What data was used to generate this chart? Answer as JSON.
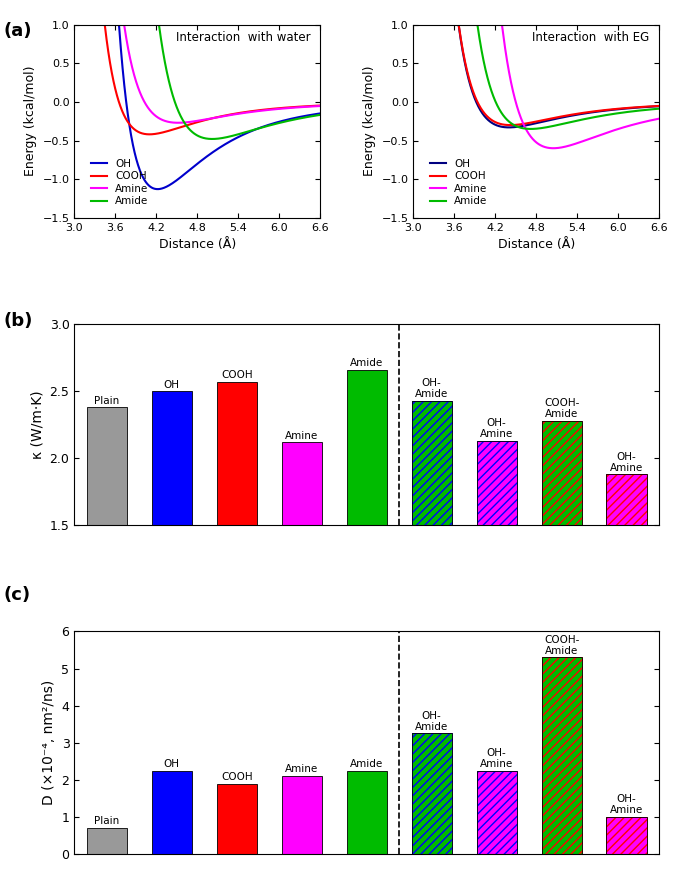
{
  "water_curves": {
    "OH": {
      "color": "#0000CC",
      "r0": 4.22,
      "eps": 1.13
    },
    "COOH": {
      "color": "#FF0000",
      "r0": 4.1,
      "eps": 0.42
    },
    "Amine": {
      "color": "#FF00FF",
      "r0": 4.52,
      "eps": 0.27
    },
    "Amide": {
      "color": "#00BB00",
      "r0": 5.02,
      "eps": 0.48
    }
  },
  "eg_curves": {
    "OH": {
      "color": "#000080",
      "r0": 4.4,
      "eps": 0.33
    },
    "COOH": {
      "color": "#FF0000",
      "r0": 4.42,
      "eps": 0.3
    },
    "Amine": {
      "color": "#FF00FF",
      "r0": 5.05,
      "eps": 0.6
    },
    "Amide": {
      "color": "#00BB00",
      "r0": 4.72,
      "eps": 0.35
    }
  },
  "panel_b_values": [
    2.38,
    2.5,
    2.57,
    2.12,
    2.66,
    2.43,
    2.13,
    2.28,
    1.88
  ],
  "panel_b_colors": [
    "#999999",
    "#0000FF",
    "#FF0000",
    "#FF00FF",
    "#00BB00",
    "#00BB00",
    "#FF00FF",
    "#00BB00",
    "#FF00FF"
  ],
  "panel_b_hatches": [
    null,
    null,
    null,
    null,
    null,
    "////",
    "////",
    "////",
    "////"
  ],
  "panel_b_hatch_ec": [
    "#999999",
    "#0000FF",
    "#FF0000",
    "#FF00FF",
    "#00BB00",
    "#0000FF",
    "#0000FF",
    "#FF0000",
    "#FF0000"
  ],
  "panel_b_labels": [
    "Plain",
    "OH",
    "COOH",
    "Amine",
    "Amide",
    "OH-\nAmide",
    "OH-\nAmine",
    "COOH-\nAmide",
    "OH-\nAmine"
  ],
  "panel_b_ylabel": "κ (W/m·K)",
  "panel_b_ylim": [
    1.5,
    3.0
  ],
  "panel_b_yticks": [
    1.5,
    2.0,
    2.5,
    3.0
  ],
  "panel_c_values": [
    0.7,
    2.25,
    1.9,
    2.1,
    2.25,
    3.25,
    2.25,
    5.3,
    1.0
  ],
  "panel_c_colors": [
    "#999999",
    "#0000FF",
    "#FF0000",
    "#FF00FF",
    "#00BB00",
    "#00BB00",
    "#FF00FF",
    "#00BB00",
    "#FF00FF"
  ],
  "panel_c_hatches": [
    null,
    null,
    null,
    null,
    null,
    "////",
    "////",
    "////",
    "////"
  ],
  "panel_c_hatch_ec": [
    "#999999",
    "#0000FF",
    "#FF0000",
    "#FF00FF",
    "#00BB00",
    "#0000FF",
    "#0000FF",
    "#FF0000",
    "#FF0000"
  ],
  "panel_c_labels": [
    "Plain",
    "OH",
    "COOH",
    "Amine",
    "Amide",
    "OH-\nAmide",
    "OH-\nAmine",
    "COOH-\nAmide",
    "OH-\nAmine"
  ],
  "panel_c_ylabel": "D (×10⁻⁴, nm²/ns)",
  "panel_c_ylim": [
    0,
    6
  ],
  "panel_c_yticks": [
    0,
    1,
    2,
    3,
    4,
    5,
    6
  ]
}
